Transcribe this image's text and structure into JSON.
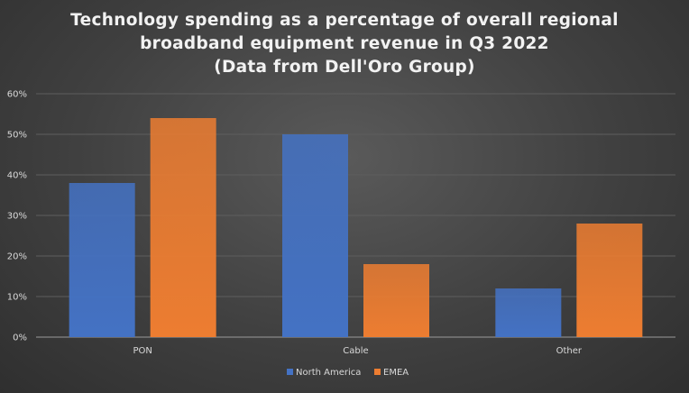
{
  "chart_data": {
    "type": "bar",
    "title_lines": [
      "Technology spending as a percentage of overall regional",
      "broadband equipment revenue in Q3 2022",
      "(Data from Dell'Oro Group)"
    ],
    "categories": [
      "PON",
      "Cable",
      "Other"
    ],
    "series": [
      {
        "name": "North America",
        "values": [
          38,
          50,
          12
        ],
        "color": "#4472c4"
      },
      {
        "name": "EMEA",
        "values": [
          54,
          18,
          28
        ],
        "color": "#ed7d31"
      }
    ],
    "ylim": [
      0,
      60
    ],
    "yticks": [
      "0%",
      "10%",
      "20%",
      "30%",
      "40%",
      "50%",
      "60%"
    ],
    "grid": true,
    "legend_position": "bottom"
  }
}
